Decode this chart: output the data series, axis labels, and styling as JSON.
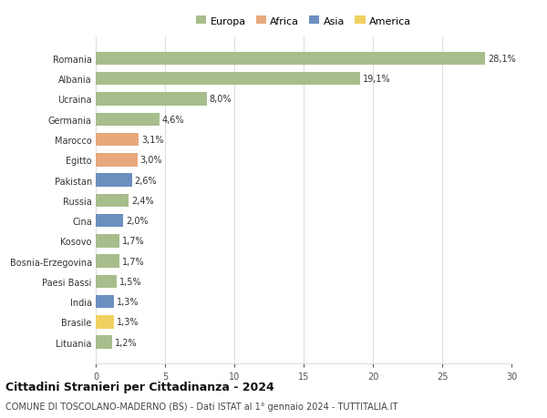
{
  "countries": [
    "Romania",
    "Albania",
    "Ucraina",
    "Germania",
    "Marocco",
    "Egitto",
    "Pakistan",
    "Russia",
    "Cina",
    "Kosovo",
    "Bosnia-Erzegovina",
    "Paesi Bassi",
    "India",
    "Brasile",
    "Lituania"
  ],
  "values": [
    28.1,
    19.1,
    8.0,
    4.6,
    3.1,
    3.0,
    2.6,
    2.4,
    2.0,
    1.7,
    1.7,
    1.5,
    1.3,
    1.3,
    1.2
  ],
  "labels": [
    "28,1%",
    "19,1%",
    "8,0%",
    "4,6%",
    "3,1%",
    "3,0%",
    "2,6%",
    "2,4%",
    "2,0%",
    "1,7%",
    "1,7%",
    "1,5%",
    "1,3%",
    "1,3%",
    "1,2%"
  ],
  "continents": [
    "Europa",
    "Europa",
    "Europa",
    "Europa",
    "Africa",
    "Africa",
    "Asia",
    "Europa",
    "Asia",
    "Europa",
    "Europa",
    "Europa",
    "Asia",
    "America",
    "Europa"
  ],
  "continent_colors": {
    "Europa": "#a8bd8c",
    "Africa": "#e8a87c",
    "Asia": "#6b8fbf",
    "America": "#f0d060"
  },
  "legend_items": [
    "Europa",
    "Africa",
    "Asia",
    "America"
  ],
  "xlim": [
    0,
    30
  ],
  "xticks": [
    0,
    5,
    10,
    15,
    20,
    25,
    30
  ],
  "title": "Cittadini Stranieri per Cittadinanza - 2024",
  "subtitle": "COMUNE DI TOSCOLANO-MADERNO (BS) - Dati ISTAT al 1° gennaio 2024 - TUTTITALIA.IT",
  "bg_color": "#ffffff",
  "grid_color": "#dddddd",
  "bar_height": 0.65,
  "title_fontsize": 9,
  "subtitle_fontsize": 7,
  "label_fontsize": 7,
  "tick_fontsize": 7,
  "legend_fontsize": 8
}
